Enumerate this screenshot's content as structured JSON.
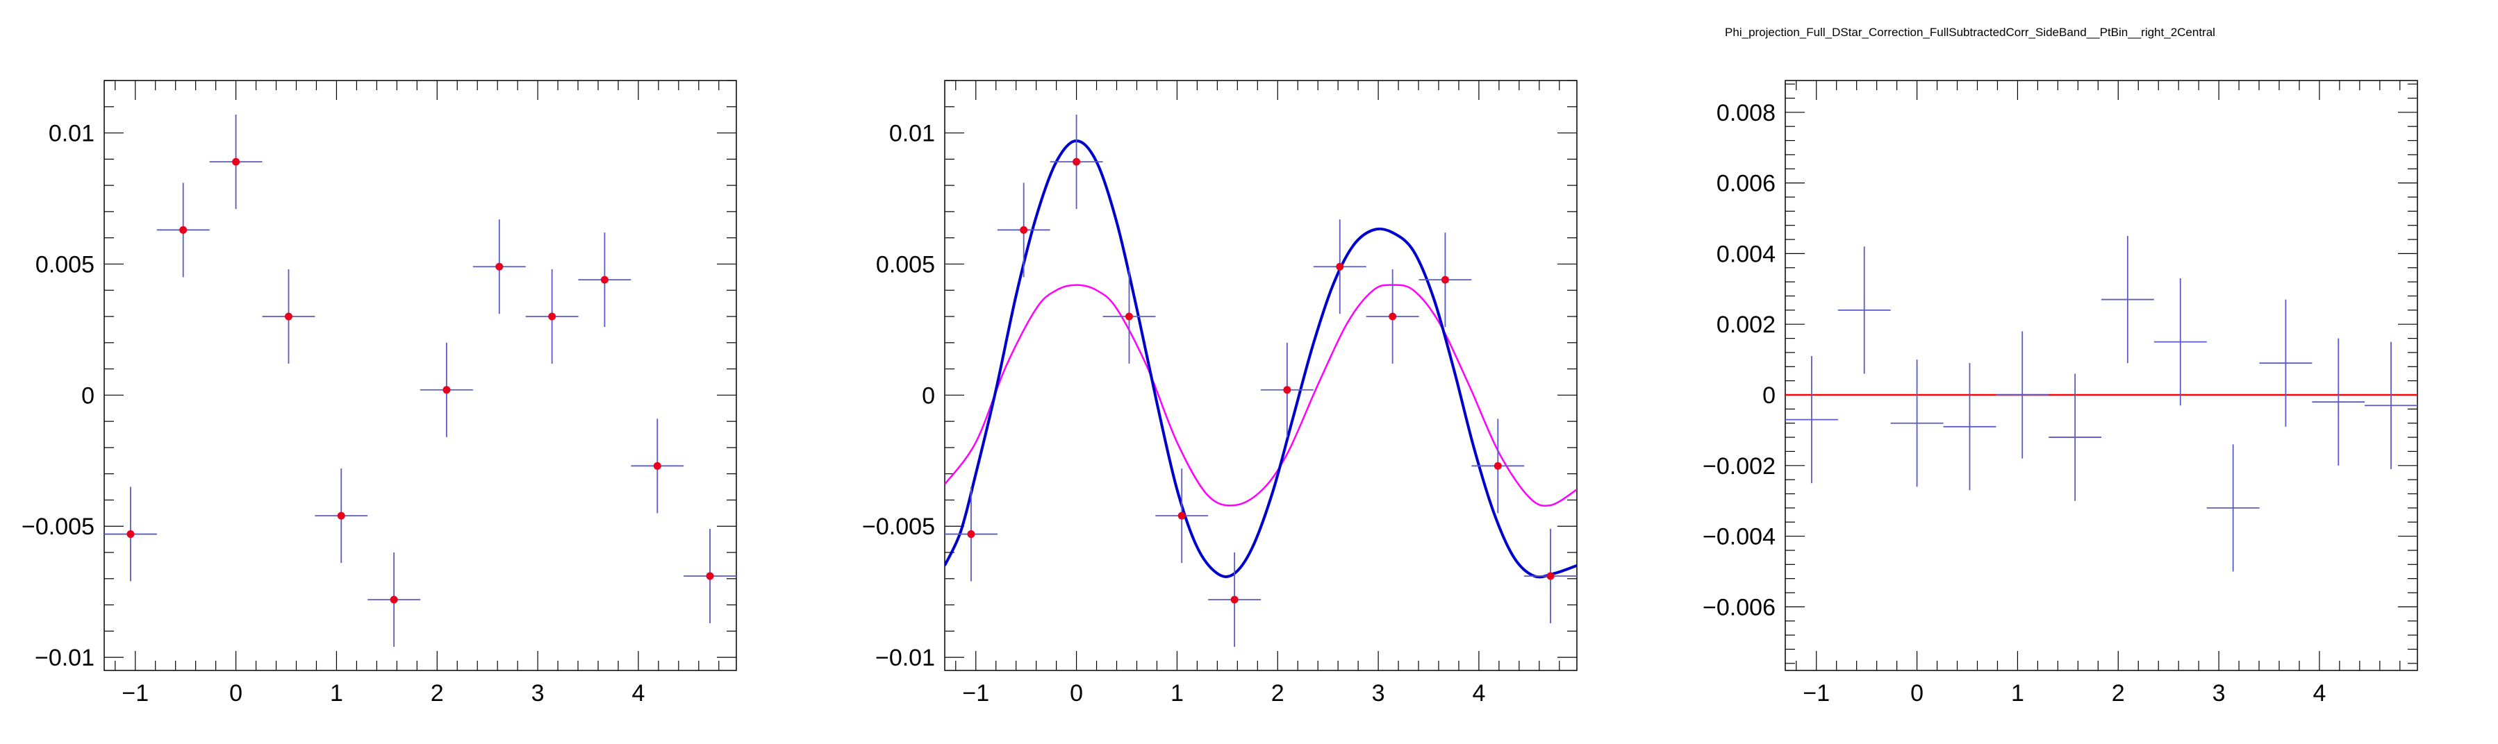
{
  "canvas_title": "Phi_projection_Full_DStar_Correction_FullSubtractedCorr_SideBand__PtBin__right_2Central",
  "colors": {
    "frame": "#000000",
    "error_bar": "#5a5ac8",
    "marker": "#e8001e",
    "fit_total": "#0000cc",
    "fit_component": "#ff00ff",
    "zero_line": "#ff0000"
  },
  "chart_data": [
    {
      "type": "scatter",
      "name": "data-points",
      "xlim": [
        -1.309,
        4.974
      ],
      "ylim": [
        -0.0105,
        0.012
      ],
      "xticks": [
        -1,
        0,
        1,
        2,
        3,
        4
      ],
      "xtick_labels": [
        "−1",
        "0",
        "1",
        "2",
        "3",
        "4"
      ],
      "yticks": [
        -0.01,
        -0.005,
        0,
        0.005,
        0.01
      ],
      "ytick_labels": [
        "−0.01",
        "−0.005",
        "0",
        "0.005",
        "0.01"
      ],
      "x": [
        -1.047,
        -0.524,
        0.0,
        0.524,
        1.047,
        1.571,
        2.094,
        2.618,
        3.142,
        3.665,
        4.189,
        4.712
      ],
      "y": [
        -0.0053,
        0.0063,
        0.0089,
        0.003,
        -0.0046,
        -0.0078,
        0.0002,
        0.0049,
        0.003,
        0.0044,
        -0.0027,
        -0.0069
      ],
      "yerr": [
        0.0018,
        0.0018,
        0.0018,
        0.0018,
        0.0018,
        0.0018,
        0.0018,
        0.0018,
        0.0018,
        0.0018,
        0.0018,
        0.0018
      ],
      "xerr": 0.262,
      "markers": true
    },
    {
      "type": "scatter",
      "name": "data-with-fit",
      "xlim": [
        -1.309,
        4.974
      ],
      "ylim": [
        -0.0105,
        0.012
      ],
      "xticks": [
        -1,
        0,
        1,
        2,
        3,
        4
      ],
      "xtick_labels": [
        "−1",
        "0",
        "1",
        "2",
        "3",
        "4"
      ],
      "yticks": [
        -0.01,
        -0.005,
        0,
        0.005,
        0.01
      ],
      "ytick_labels": [
        "−0.01",
        "−0.005",
        "0",
        "0.005",
        "0.01"
      ],
      "x": [
        -1.047,
        -0.524,
        0.0,
        0.524,
        1.047,
        1.571,
        2.094,
        2.618,
        3.142,
        3.665,
        4.189,
        4.712
      ],
      "y": [
        -0.0053,
        0.0063,
        0.0089,
        0.003,
        -0.0046,
        -0.0078,
        0.0002,
        0.0049,
        0.003,
        0.0044,
        -0.0027,
        -0.0069
      ],
      "yerr": [
        0.0018,
        0.0018,
        0.0018,
        0.0018,
        0.0018,
        0.0018,
        0.0018,
        0.0018,
        0.0018,
        0.0018,
        0.0018,
        0.0018
      ],
      "xerr": 0.262,
      "markers": true,
      "curves": [
        {
          "name": "fit-component",
          "color_key": "fit_component",
          "x": [
            -1.309,
            -1.0,
            -0.7,
            -0.4,
            -0.2,
            0.0,
            0.2,
            0.4,
            0.7,
            1.0,
            1.3,
            1.571,
            1.85,
            2.1,
            2.4,
            2.7,
            2.95,
            3.142,
            3.35,
            3.6,
            3.9,
            4.2,
            4.5,
            4.712,
            4.974
          ],
          "y": [
            -0.0034,
            -0.0018,
            0.0011,
            0.0033,
            0.004,
            0.0042,
            0.004,
            0.0033,
            0.0011,
            -0.0018,
            -0.0038,
            -0.0042,
            -0.0036,
            -0.0022,
            0.0004,
            0.0028,
            0.004,
            0.0042,
            0.004,
            0.0028,
            0.0004,
            -0.0022,
            -0.0039,
            -0.0042,
            -0.0036
          ]
        },
        {
          "name": "fit-total",
          "color_key": "fit_total",
          "x": [
            -1.309,
            -1.15,
            -1.0,
            -0.8,
            -0.6,
            -0.4,
            -0.2,
            0.0,
            0.2,
            0.4,
            0.6,
            0.8,
            1.0,
            1.2,
            1.4,
            1.571,
            1.75,
            1.95,
            2.15,
            2.35,
            2.55,
            2.75,
            2.95,
            3.142,
            3.35,
            3.55,
            3.75,
            3.95,
            4.15,
            4.35,
            4.55,
            4.75,
            4.974
          ],
          "y": [
            -0.0065,
            -0.0052,
            -0.003,
            0.0002,
            0.0038,
            0.0068,
            0.0089,
            0.0097,
            0.0089,
            0.0066,
            0.0033,
            -0.0003,
            -0.0036,
            -0.0058,
            -0.0068,
            -0.0068,
            -0.0058,
            -0.0037,
            -0.0009,
            0.0019,
            0.0042,
            0.0057,
            0.0063,
            0.0062,
            0.0055,
            0.0037,
            0.001,
            -0.002,
            -0.0045,
            -0.0062,
            -0.0069,
            -0.0068,
            -0.0065
          ]
        }
      ]
    },
    {
      "type": "scatter",
      "name": "residuals",
      "xlim": [
        -1.309,
        4.974
      ],
      "ylim": [
        -0.0078,
        0.0089
      ],
      "xticks": [
        -1,
        0,
        1,
        2,
        3,
        4
      ],
      "xtick_labels": [
        "−1",
        "0",
        "1",
        "2",
        "3",
        "4"
      ],
      "yticks": [
        -0.006,
        -0.004,
        -0.002,
        0,
        0.002,
        0.004,
        0.006,
        0.008
      ],
      "ytick_labels": [
        "−0.006",
        "−0.004",
        "−0.002",
        "0",
        "0.002",
        "0.004",
        "0.006",
        "0.008"
      ],
      "x": [
        -1.047,
        -0.524,
        0.0,
        0.524,
        1.047,
        1.571,
        2.094,
        2.618,
        3.142,
        3.665,
        4.189,
        4.712
      ],
      "y": [
        -0.0007,
        0.0024,
        -0.0008,
        -0.0009,
        0.0,
        -0.0012,
        0.0027,
        0.0015,
        -0.0032,
        0.0009,
        -0.0002,
        -0.0003
      ],
      "yerr": [
        0.0018,
        0.0018,
        0.0018,
        0.0018,
        0.0018,
        0.0018,
        0.0018,
        0.0018,
        0.0018,
        0.0018,
        0.0018,
        0.0018
      ],
      "xerr": 0.262,
      "markers": false,
      "hline": 0
    }
  ]
}
